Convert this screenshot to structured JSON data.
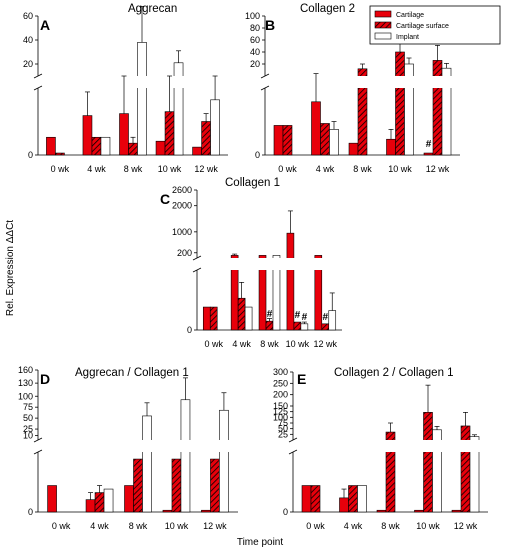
{
  "figure": {
    "ylabel": "Rel. Expression ΔΔCt",
    "xlabel": "Time point",
    "legend": [
      "Cartilage",
      "Cartilage surface",
      "Implant"
    ],
    "colors": {
      "cartilage": "#e8000b",
      "surface": "#e8000b",
      "implant": "#ffffff",
      "stroke": "#000000"
    }
  },
  "chart_data": [
    {
      "panel": "A",
      "title": "Aggrecan",
      "type": "bar",
      "categories": [
        "0 wk",
        "4 wk",
        "8 wk",
        "10 wk",
        "12 wk"
      ],
      "upper_ticks": [
        "20",
        "40",
        "60"
      ],
      "upper_ylim": [
        10,
        60
      ],
      "lower_ylim": [
        0,
        3.4
      ],
      "series": [
        {
          "name": "Cartilage",
          "values": [
            0.9,
            2.0,
            2.1,
            0.7,
            0.4
          ],
          "errors": [
            0,
            1.2,
            1.6,
            0,
            0
          ]
        },
        {
          "name": "Cartilage surface",
          "values": [
            0.1,
            0.9,
            0.6,
            2.2,
            1.7
          ],
          "errors": [
            0,
            0,
            0.3,
            1.5,
            0.4
          ]
        },
        {
          "name": "Implant",
          "values": [
            0,
            0.9,
            38,
            21,
            2.8
          ],
          "errors": [
            0,
            0,
            30,
            10,
            1.2
          ]
        }
      ],
      "annotations": []
    },
    {
      "panel": "B",
      "title": "Collagen 2",
      "type": "bar",
      "categories": [
        "0 wk",
        "4 wk",
        "8 wk",
        "10 wk",
        "12 wk"
      ],
      "upper_ticks": [
        "20",
        "40",
        "60",
        "80",
        "100"
      ],
      "upper_ylim": [
        0,
        100
      ],
      "lower_ylim": [
        0,
        3.4
      ],
      "series": [
        {
          "name": "Cartilage",
          "values": [
            1.5,
            2.7,
            0.6,
            0.8,
            0.1
          ],
          "errors": [
            0,
            1.3,
            0,
            0.5,
            0
          ]
        },
        {
          "name": "Cartilage surface",
          "values": [
            1.5,
            1.6,
            12,
            40,
            26
          ],
          "errors": [
            0,
            0,
            8,
            15,
            25
          ]
        },
        {
          "name": "Implant",
          "values": [
            0,
            1.3,
            0,
            20,
            13
          ],
          "errors": [
            0,
            0.4,
            0,
            10,
            8
          ]
        }
      ],
      "annotations": [
        {
          "text": "#",
          "category": "12 wk",
          "series": "Cartilage"
        }
      ]
    },
    {
      "panel": "C",
      "title": "Collagen 1",
      "type": "bar",
      "categories": [
        "0 wk",
        "4 wk",
        "8 wk",
        "10 wk",
        "12 wk"
      ],
      "upper_ticks": [
        "200",
        "1000",
        "2000",
        "2600"
      ],
      "upper_ylim": [
        0,
        2600
      ],
      "lower_ylim": [
        0,
        3.4
      ],
      "series": [
        {
          "name": "Cartilage",
          "values": [
            1.3,
            100,
            100,
            950,
            100
          ],
          "errors": [
            0,
            50,
            0,
            850,
            0
          ]
        },
        {
          "name": "Cartilage surface",
          "values": [
            1.3,
            1.8,
            0.5,
            0.45,
            0.35
          ],
          "errors": [
            0,
            0.9,
            0.15,
            0,
            0
          ]
        },
        {
          "name": "Implant",
          "values": [
            0,
            1.3,
            100,
            0.35,
            1.1
          ],
          "errors": [
            0,
            0,
            0,
            0.1,
            1.0
          ]
        }
      ],
      "annotations": [
        {
          "text": "#",
          "category": "8 wk",
          "series": "Cartilage surface"
        },
        {
          "text": "#",
          "category": "10 wk",
          "series": "Cartilage surface"
        },
        {
          "text": "#",
          "category": "10 wk",
          "series": "Implant"
        },
        {
          "text": "#",
          "category": "12 wk",
          "series": "Cartilage surface"
        }
      ]
    },
    {
      "panel": "D",
      "title": "Aggrecan / Collagen 1",
      "type": "bar",
      "categories": [
        "0 wk",
        "4 wk",
        "8 wk",
        "10 wk",
        "12 wk"
      ],
      "upper_ticks": [
        "10",
        "25",
        "50",
        "75",
        "100",
        "130",
        "160"
      ],
      "upper_ylim": [
        0,
        160
      ],
      "lower_ylim": [
        0,
        3.4
      ],
      "series": [
        {
          "name": "Cartilage",
          "values": [
            1.5,
            0.7,
            1.5,
            0.1,
            0.1
          ],
          "errors": [
            0,
            0.4,
            0,
            0,
            0
          ]
        },
        {
          "name": "Cartilage surface",
          "values": [
            0,
            1.1,
            3,
            3,
            3
          ],
          "errors": [
            0,
            0.4,
            0,
            0,
            0
          ]
        },
        {
          "name": "Implant",
          "values": [
            0,
            1.3,
            55,
            92,
            68
          ],
          "errors": [
            0,
            0,
            30,
            50,
            40
          ]
        }
      ],
      "annotations": []
    },
    {
      "panel": "E",
      "title": "Collagen 2 / Collagen 1",
      "type": "bar",
      "categories": [
        "0 wk",
        "4 wk",
        "8 wk",
        "10 wk",
        "12 wk"
      ],
      "upper_ticks": [
        "25",
        "50",
        "75",
        "100",
        "125",
        "150",
        "200",
        "250",
        "300"
      ],
      "upper_ylim": [
        0,
        300
      ],
      "lower_ylim": [
        0,
        3.4
      ],
      "series": [
        {
          "name": "Cartilage",
          "values": [
            1.5,
            0.8,
            0.1,
            0.1,
            0.1
          ],
          "errors": [
            0,
            0.5,
            0,
            0,
            0
          ]
        },
        {
          "name": "Cartilage surface",
          "values": [
            1.5,
            1.5,
            35,
            122,
            62
          ],
          "errors": [
            0,
            0,
            40,
            120,
            60
          ]
        },
        {
          "name": "Implant",
          "values": [
            0,
            1.5,
            0,
            45,
            15
          ],
          "errors": [
            0,
            0,
            0,
            15,
            8
          ]
        }
      ],
      "annotations": []
    }
  ]
}
